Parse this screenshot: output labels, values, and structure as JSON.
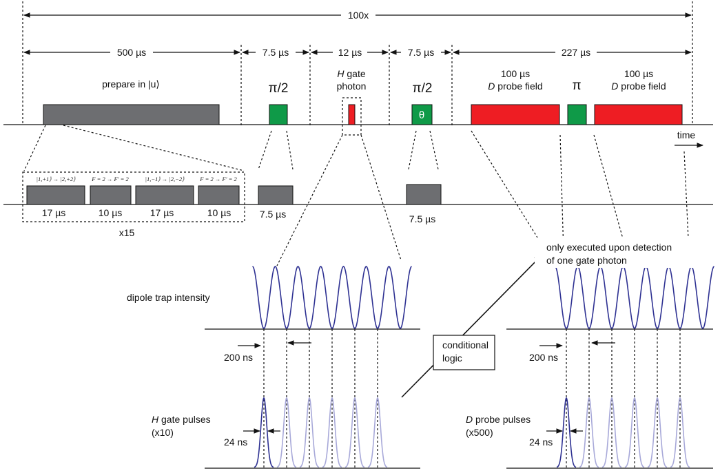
{
  "timing": {
    "repeat": "100x",
    "t_prepare": "500 µs",
    "t_pi2_first": "7.5 µs",
    "t_gate": "12 µs",
    "t_pi2_second": "7.5 µs",
    "t_detect": "227 µs"
  },
  "pulses": {
    "prepare_label": "prepare in |u⟩",
    "pi_half_1": "π/2",
    "h_gate": "H",
    "h_gate_suffix": " gate",
    "photon": "photon",
    "pi_half_2": "π/2",
    "theta": "θ",
    "probe1_dur": "100 µs",
    "probe1_d": "D",
    "probe1_label": " probe field",
    "pi": "π",
    "probe2_dur": "100 µs",
    "probe2_d": "D",
    "probe2_label": " probe field",
    "time_axis": "time"
  },
  "prepare_detail": {
    "trans1": "|1,+1⟩ → |2,+2⟩",
    "trans2": "F = 2 → F′ = 2",
    "trans3": "|1,−1⟩ → |2,−2⟩",
    "trans4": "F = 2 → F′ = 2",
    "d1": "17 µs",
    "d2": "10 µs",
    "d3": "17 µs",
    "d4": "10 µs",
    "repeat": "x15",
    "pi2_detail_dur": "7.5 µs",
    "theta_detail_dur": "7.5 µs"
  },
  "lower": {
    "dipole_label": "dipole trap intensity",
    "period_left": "200 ns",
    "period_right": "200 ns",
    "cond_line1": "conditional",
    "cond_line2": "logic",
    "note_line1": "only executed upon detection",
    "note_line2": "of one gate photon",
    "h_label_h": "H",
    "h_label_rest": " gate pulses",
    "h_count": "(x10)",
    "h_width": "24 ns",
    "d_label_d": "D",
    "d_label_rest": " probe pulses",
    "d_count": "(x500)",
    "d_width": "24 ns"
  },
  "colors": {
    "gray_pulse": "#6d6e71",
    "green_pulse": "#0f9a48",
    "red_pulse": "#ee1d23",
    "wave_dark": "#2e3192",
    "wave_light": "#a8a9d9"
  }
}
